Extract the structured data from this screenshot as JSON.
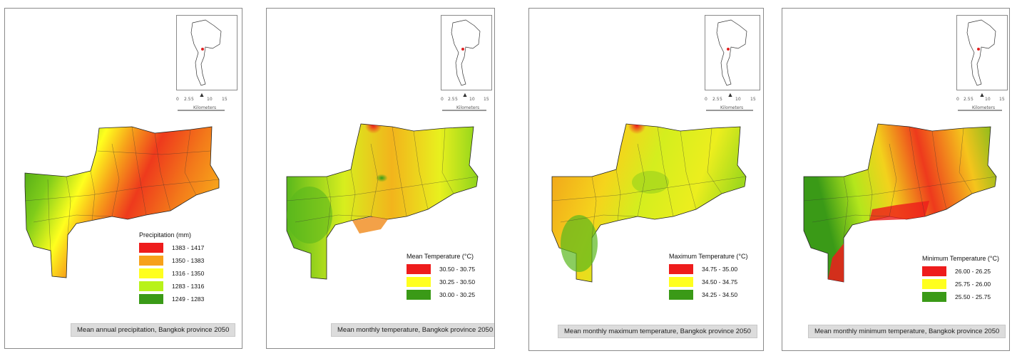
{
  "maps": [
    {
      "title": "Mean annual precipitation, Bangkok province 2050",
      "legend_title": "Precipitation (mm)",
      "legend": [
        {
          "label": "1383 - 1417",
          "color": "#ee1c1c"
        },
        {
          "label": "1350 - 1383",
          "color": "#f7a11a"
        },
        {
          "label": "1316 - 1350",
          "color": "#ffff1e"
        },
        {
          "label": "1283 - 1316",
          "color": "#b8f21a"
        },
        {
          "label": "1249 - 1283",
          "color": "#3a9a17"
        }
      ]
    },
    {
      "title": "Mean monthly temperature, Bangkok province 2050",
      "legend_title": "Mean Temperature (°C)",
      "legend": [
        {
          "label": "30.50 - 30.75",
          "color": "#ee1c1c"
        },
        {
          "label": "30.25 - 30.50",
          "color": "#ffff1e"
        },
        {
          "label": "30.00 - 30.25",
          "color": "#3a9a17"
        }
      ]
    },
    {
      "title": "Mean monthly maximum temperature, Bangkok province 2050",
      "legend_title": "Maximum Temperature (°C)",
      "legend": [
        {
          "label": "34.75 - 35.00",
          "color": "#ee1c1c"
        },
        {
          "label": "34.50 - 34.75",
          "color": "#ffff1e"
        },
        {
          "label": "34.25 - 34.50",
          "color": "#3a9a17"
        }
      ]
    },
    {
      "title": "Mean monthly minimum temperature, Bangkok province 2050",
      "legend_title": "Minimum Temperature (°C)",
      "legend": [
        {
          "label": "26.00 - 26.25",
          "color": "#ee1c1c"
        },
        {
          "label": "25.75 - 26.00",
          "color": "#ffff1e"
        },
        {
          "label": "25.50 - 25.75",
          "color": "#3a9a17"
        }
      ]
    }
  ],
  "scale_ticks": [
    "0",
    "2.5",
    "5",
    "10",
    "15"
  ],
  "scale_unit": "Kilometers",
  "north_label": "N"
}
